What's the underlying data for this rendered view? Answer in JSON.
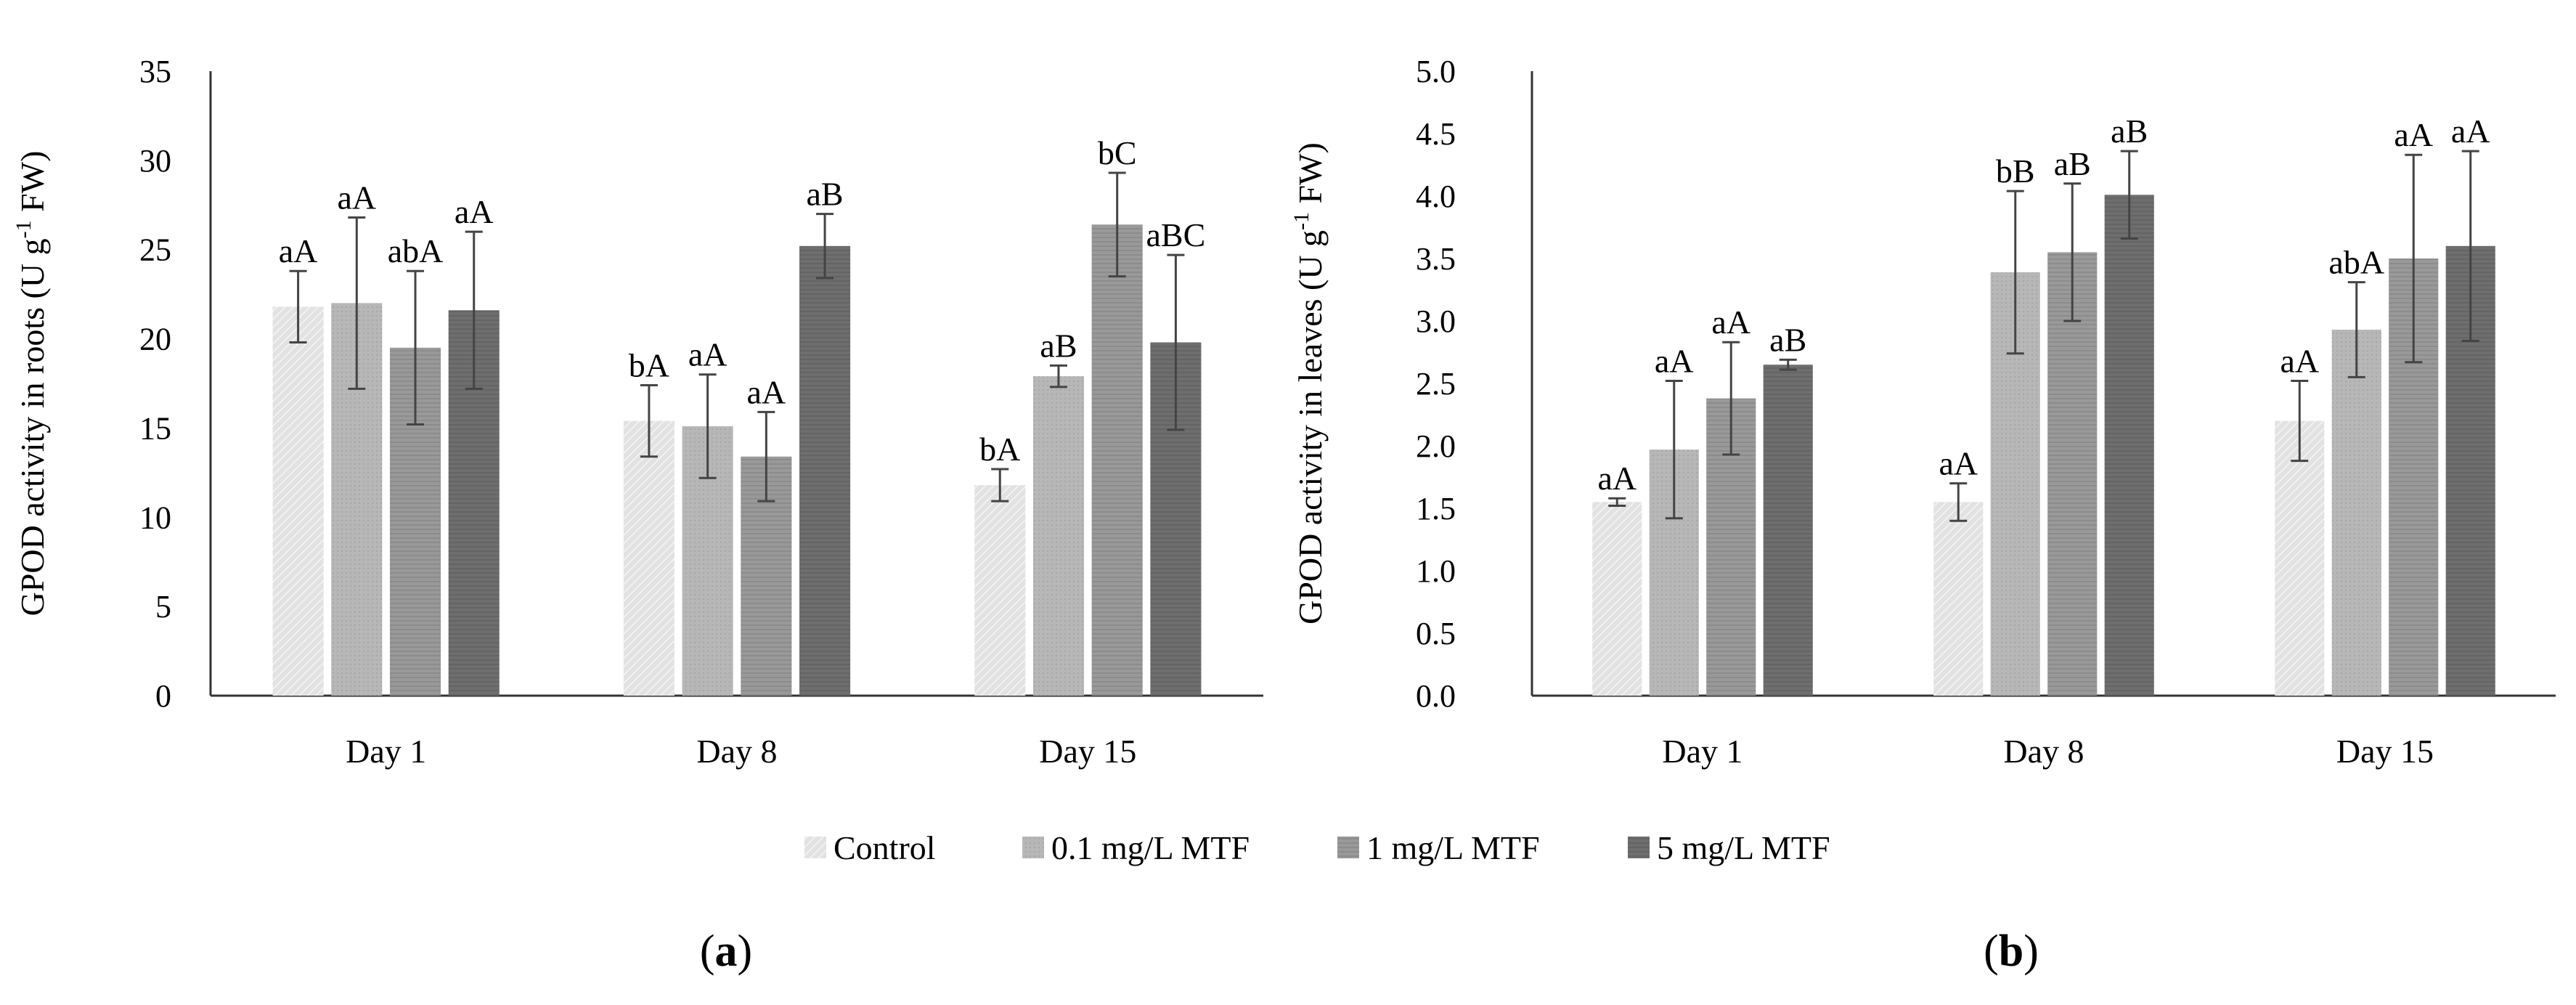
{
  "series_colors": {
    "Control": "#e4e4e4",
    "0.1 mg/L MTF": "#b9b9b9",
    "1 mg/L MTF": "#9a9a9a",
    "5 mg/L MTF": "#6e6e6e"
  },
  "legend": [
    "Control",
    "0.1 mg/L MTF",
    "1 mg/L MTF",
    "5 mg/L MTF"
  ],
  "chart_data": [
    {
      "type": "bar",
      "panel_label": "(a)",
      "panel_letter": "a",
      "ylabel_main": "GPOD activity  in roots (U g",
      "ylabel_sup": "-1",
      "ylabel_end": " FW)",
      "ylim": [
        0,
        35
      ],
      "yticks": [
        0,
        5,
        10,
        15,
        20,
        25,
        30,
        35
      ],
      "yticklabels": [
        "0",
        "5",
        "10",
        "15",
        "20",
        "25",
        "30",
        "35"
      ],
      "categories": [
        "Day 1",
        "Day 8",
        "Day 15"
      ],
      "series": [
        {
          "name": "Control",
          "values": [
            21.8,
            15.4,
            11.8
          ],
          "errors": [
            2.0,
            2.0,
            0.9
          ],
          "labels": [
            "aA",
            "bA",
            "bA"
          ]
        },
        {
          "name": "0.1 mg/L MTF",
          "values": [
            22.0,
            15.1,
            17.9
          ],
          "errors": [
            4.8,
            2.9,
            0.6
          ],
          "labels": [
            "aA",
            "aA",
            "aB"
          ]
        },
        {
          "name": "1 mg/L MTF",
          "values": [
            19.5,
            13.4,
            26.4
          ],
          "errors": [
            4.3,
            2.5,
            2.9
          ],
          "labels": [
            "abA",
            "aA",
            "bC"
          ]
        },
        {
          "name": "5 mg/L MTF",
          "values": [
            21.6,
            25.2,
            19.8
          ],
          "errors": [
            4.4,
            1.8,
            4.9
          ],
          "labels": [
            "aA",
            "aB",
            "aBC"
          ]
        }
      ]
    },
    {
      "type": "bar",
      "panel_label": "(b)",
      "panel_letter": "b",
      "ylabel_main": "GPOD activity  in leaves (U g",
      "ylabel_sup": "-1",
      "ylabel_end": " FW)",
      "ylim": [
        0,
        5
      ],
      "yticks": [
        0,
        0.5,
        1,
        1.5,
        2,
        2.5,
        3,
        3.5,
        4,
        4.5,
        5
      ],
      "yticklabels": [
        "0.0",
        "0.5",
        "1.0",
        "1.5",
        "2.0",
        "2.5",
        "3.0",
        "3.5",
        "4.0",
        "4.5",
        "5.0"
      ],
      "categories": [
        "Day 1",
        "Day 8",
        "Day 15"
      ],
      "series": [
        {
          "name": "Control",
          "values": [
            1.55,
            1.55,
            2.2
          ],
          "errors": [
            0.03,
            0.15,
            0.32
          ],
          "labels": [
            "aA",
            "aA",
            "aA"
          ]
        },
        {
          "name": "0.1 mg/L MTF",
          "values": [
            1.97,
            3.39,
            2.93
          ],
          "errors": [
            0.55,
            0.65,
            0.38
          ],
          "labels": [
            "aA",
            "bB",
            "abA"
          ]
        },
        {
          "name": "1 mg/L MTF",
          "values": [
            2.38,
            3.55,
            3.5
          ],
          "errors": [
            0.45,
            0.55,
            0.83
          ],
          "labels": [
            "aA",
            "aB",
            "aA"
          ]
        },
        {
          "name": "5 mg/L MTF",
          "values": [
            2.65,
            4.01,
            3.6
          ],
          "errors": [
            0.04,
            0.35,
            0.76
          ],
          "labels": [
            "aB",
            "aB",
            "aA"
          ]
        }
      ]
    }
  ]
}
